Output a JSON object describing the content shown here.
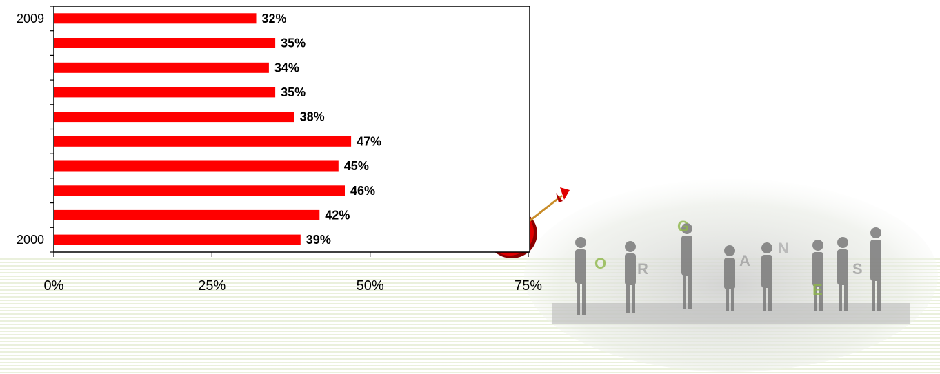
{
  "chart_data": {
    "type": "bar",
    "orientation": "horizontal",
    "categories": [
      "2000",
      "",
      "",
      "",
      "",
      "",
      "",
      "",
      "",
      "2009"
    ],
    "values": [
      39,
      42,
      46,
      45,
      47,
      38,
      35,
      34,
      35,
      32
    ],
    "data_labels": [
      "39%",
      "42%",
      "46%",
      "45%",
      "47%",
      "38%",
      "35%",
      "34%",
      "35%",
      "32%"
    ],
    "x_ticks": [
      "0%",
      "25%",
      "50%",
      "75%"
    ],
    "x_tick_values": [
      0,
      25,
      50,
      75
    ],
    "xlim": [
      0,
      75
    ],
    "bar_color": "#ff0000",
    "grid": false,
    "legend": "none"
  },
  "decor": {
    "target_icon": "dartboard-with-arrow-icon",
    "people_image": "people-holding-letters-image",
    "people_letters": "ORGANIZES",
    "background": "green-horizontal-stripes"
  }
}
